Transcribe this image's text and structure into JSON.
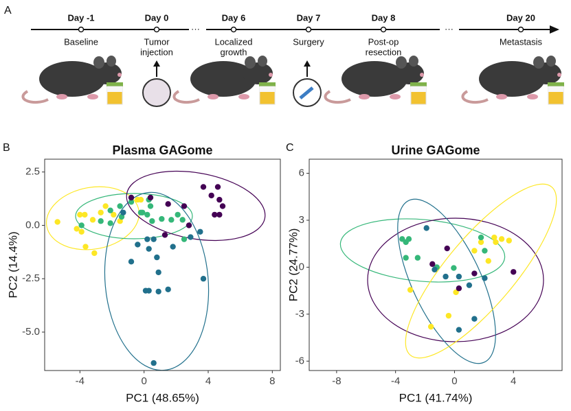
{
  "panel_labels": [
    "A",
    "B",
    "C"
  ],
  "timeline": {
    "days": [
      {
        "day": "Day -1",
        "event": [
          "Baseline"
        ]
      },
      {
        "day": "Day 0",
        "event": [
          "Tumor",
          "injection"
        ]
      },
      {
        "day": "Day 6",
        "event": [
          "Localized",
          "growth"
        ]
      },
      {
        "day": "Day 7",
        "event": [
          "Surgery"
        ]
      },
      {
        "day": "Day 8",
        "event": [
          "Post-op",
          "resection"
        ]
      },
      {
        "day": "Day 20",
        "event": [
          "Metastasis"
        ]
      }
    ]
  },
  "chart_data": [
    {
      "type": "scatter",
      "title": "Plasma GAGome",
      "x_label": "PC1 (48.65%)",
      "y_label": "PC2 (14.4%)",
      "xlim": [
        -6.2,
        8.5
      ],
      "ylim": [
        -6.8,
        3.1
      ],
      "xticks": [
        -4,
        0,
        4,
        8
      ],
      "yticks": [
        2.5,
        {
          "value": 0,
          "label": "0.0"
        },
        -2.5,
        {
          "value": -5,
          "label": "-5.0"
        }
      ],
      "series": [
        {
          "color": "#fde725",
          "x": [
            -5.4,
            -4.0,
            -3.7,
            -4.2,
            -3.9,
            -3.1,
            -3.2,
            -2.7,
            -2.4,
            -1.9,
            -1.5,
            -0.4,
            -0.2,
            -3.65
          ],
          "values": [
            0.16,
            0.5,
            0.5,
            -0.16,
            -0.3,
            -1.3,
            0.26,
            0.6,
            0.9,
            0.5,
            0.2,
            1.2,
            1.2,
            -1.0
          ]
        },
        {
          "color": "#35b779",
          "x": [
            -3.9,
            -2.7,
            -2.1,
            -2.1,
            -1.5,
            -1.4,
            -0.8,
            -0.1,
            0.2,
            0.4,
            0.3,
            0.5,
            1.1,
            1.7,
            2.1,
            2.5,
            2.4,
            -0.2
          ],
          "values": [
            0,
            0.2,
            0.1,
            0.7,
            0.9,
            0.4,
            1.1,
            0.6,
            0.5,
            0.9,
            1.2,
            0.2,
            0.3,
            0.26,
            0.5,
            -0.65,
            0.26,
            0.6
          ]
        },
        {
          "color": "#21708c",
          "x": [
            -0.8,
            -0.4,
            0.3,
            0.2,
            0.9,
            0.8,
            1.5,
            0.1,
            0.3,
            0.9,
            0.6,
            1.8,
            2.9,
            3.5,
            3.7,
            0.6,
            -1.3
          ],
          "values": [
            -1.7,
            -0.9,
            -1.1,
            -0.65,
            -2.2,
            -1.5,
            -3.0,
            -3.06,
            -3.06,
            -3.1,
            -0.65,
            -1.0,
            -0.55,
            -0.3,
            -2.5,
            -6.45,
            0.6
          ]
        },
        {
          "color": "#440154",
          "x": [
            -0.8,
            0.4,
            1.5,
            2.5,
            3.7,
            4.6,
            4.7,
            4.2,
            4.4,
            4.7,
            4.9,
            1.3,
            2.8
          ],
          "values": [
            1.3,
            1.3,
            1.0,
            0.9,
            1.8,
            1.8,
            1.2,
            1.4,
            0.5,
            0.5,
            0.9,
            -0.45,
            0
          ]
        }
      ]
    },
    {
      "type": "scatter",
      "title": "Urine GAGome",
      "x_label": "PC1 (41.74%)",
      "y_label": "PC2 (24.77%)",
      "xlim": [
        -9.86,
        7.3
      ],
      "ylim": [
        -6.6,
        6.9
      ],
      "xticks": [
        -8,
        -4,
        0,
        4
      ],
      "yticks": [
        6,
        3,
        0,
        -3,
        -6
      ],
      "series": [
        {
          "color": "#fde725",
          "x": [
            -3.0,
            -1.6,
            -0.4,
            0.1,
            1.8,
            2.7,
            2.8,
            3.2,
            3.7,
            2.3,
            1.35
          ],
          "values": [
            -1.45,
            -3.8,
            -3.1,
            -1.6,
            1.6,
            1.9,
            1.6,
            1.8,
            1.7,
            0.4,
            1.05
          ]
        },
        {
          "color": "#35b779",
          "x": [
            -3.55,
            -3.3,
            -3.1,
            -3.3,
            -2.5,
            -0.05,
            1.8,
            2.05,
            -1.2
          ],
          "values": [
            1.8,
            1.6,
            1.8,
            0.6,
            0.6,
            -0.05,
            1.9,
            1.05,
            0
          ]
        },
        {
          "color": "#21708c",
          "x": [
            -1.9,
            -1.35,
            -0.6,
            0.3,
            1.0,
            2.05,
            1.35,
            0.3
          ],
          "values": [
            2.5,
            -0.15,
            -0.6,
            -0.6,
            -1.15,
            -0.7,
            -3.3,
            -4.0
          ]
        },
        {
          "color": "#440154",
          "x": [
            -0.5,
            -1.5,
            0.3,
            4.0,
            1.35
          ],
          "values": [
            1.2,
            0.2,
            -1.35,
            -0.3,
            -0.4
          ]
        }
      ]
    }
  ]
}
